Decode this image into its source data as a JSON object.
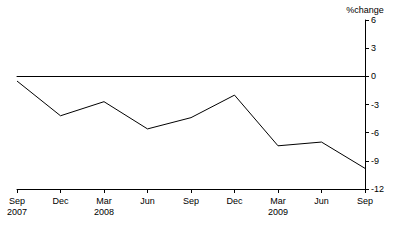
{
  "chart_data": {
    "type": "line",
    "y_label": "%change",
    "categories": [
      "Sep\n2007",
      "Dec",
      "Mar\n2008",
      "Jun",
      "Sep",
      "Dec",
      "Mar\n2009",
      "Jun",
      "Sep"
    ],
    "values": [
      -0.5,
      -4.2,
      -2.7,
      -5.6,
      -4.4,
      -2.0,
      -7.4,
      -7.0,
      -9.8
    ],
    "color": "#000000",
    "ylim": [
      -12,
      6
    ],
    "yticks": [
      -12,
      -9,
      -6,
      -3,
      0,
      3,
      6
    ],
    "grid": false
  }
}
